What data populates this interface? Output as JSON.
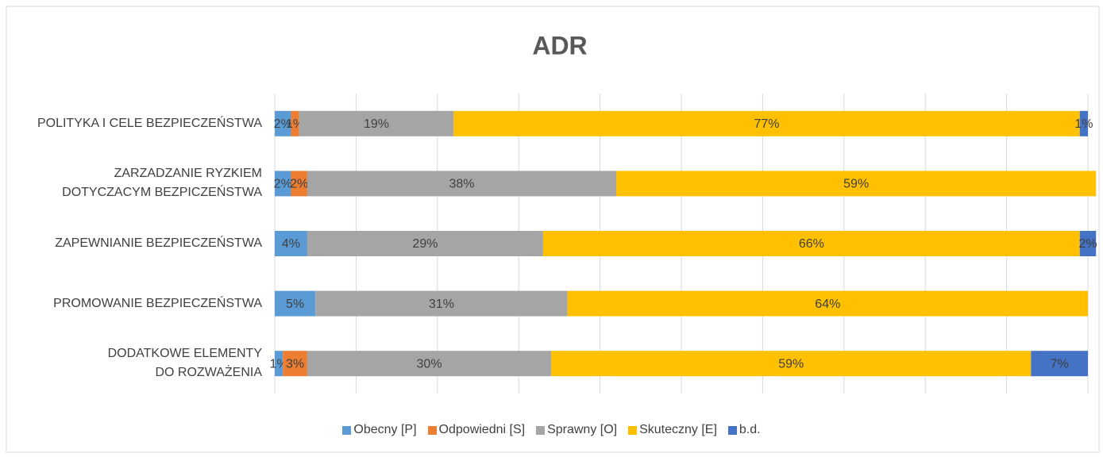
{
  "chart_data": {
    "type": "stacked-bar-horizontal",
    "title": "ADR",
    "categories": [
      "POLITYKA I CELE BEZPIECZEŃSTWA",
      "ZARZADZANIE RYZKIEM\nDOTYCZACYM BEZPICZEŃSTWA",
      "ZAPEWNIANIE BEZPIECZEŃSTWA",
      "PROMOWANIE BEZPIECZEŃSTWA",
      "DODATKOWE ELEMENTY\nDO ROZWAŻENIA"
    ],
    "series": [
      {
        "name": "Obecny [P]",
        "color": "#5b9bd5",
        "values": [
          2,
          2,
          4,
          5,
          1
        ],
        "value_labels": [
          "2%",
          "2%",
          "4%",
          "5%",
          "1%"
        ]
      },
      {
        "name": "Odpowiedni [S]",
        "color": "#ed7d31",
        "values": [
          1,
          2,
          null,
          null,
          3
        ],
        "value_labels": [
          "1%",
          "2%",
          null,
          null,
          "3%"
        ]
      },
      {
        "name": "Sprawny [O]",
        "color": "#a5a5a5",
        "values": [
          19,
          38,
          29,
          31,
          30
        ],
        "value_labels": [
          "19%",
          "38%",
          "29%",
          "31%",
          "30%"
        ]
      },
      {
        "name": "Skuteczny [E]",
        "color": "#ffc000",
        "values": [
          77,
          59,
          66,
          64,
          59
        ],
        "value_labels": [
          "77%",
          "59%",
          "66%",
          "64%",
          "59%"
        ]
      },
      {
        "name": "b.d.",
        "color": "#4472c4",
        "values": [
          1,
          null,
          2,
          null,
          7
        ],
        "value_labels": [
          "1%",
          null,
          "2%",
          null,
          "7%"
        ]
      }
    ],
    "xlim": [
      0,
      100
    ],
    "xticks": [
      0,
      10,
      20,
      30,
      40,
      50,
      60,
      70,
      80,
      90,
      100
    ],
    "grid": true,
    "legend": "bottom"
  }
}
